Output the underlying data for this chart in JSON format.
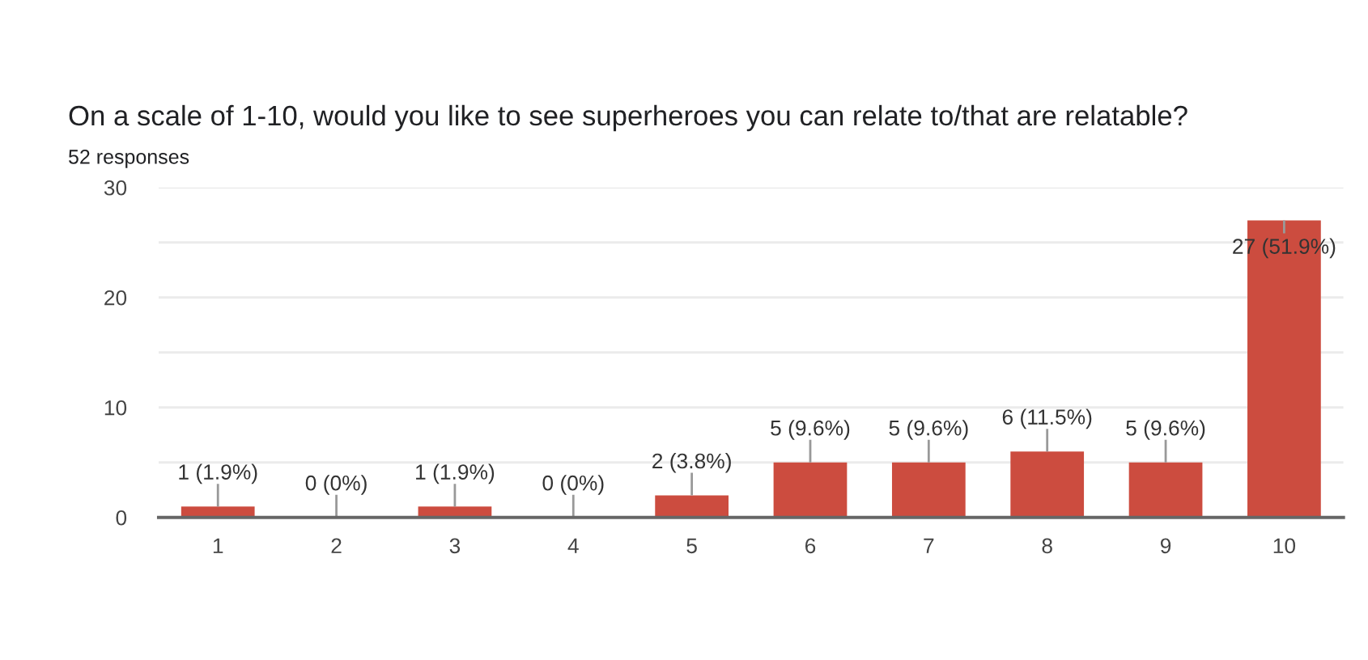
{
  "chart_data": {
    "type": "bar",
    "title": "On a scale of 1-10, would you like to see superheroes you can relate to/that are relatable?",
    "subtitle": "52 responses",
    "categories": [
      "1",
      "2",
      "3",
      "4",
      "5",
      "6",
      "7",
      "8",
      "9",
      "10"
    ],
    "values": [
      1,
      0,
      1,
      0,
      2,
      5,
      5,
      6,
      5,
      27
    ],
    "value_labels": [
      "1 (1.9%)",
      "0 (0%)",
      "1 (1.9%)",
      "0 (0%)",
      "2 (3.8%)",
      "5 (9.6%)",
      "5 (9.6%)",
      "6 (11.5%)",
      "5 (9.6%)",
      "27 (51.9%)"
    ],
    "color": "#cc4c3f",
    "ylim": [
      0,
      30
    ],
    "yticks": [
      0,
      {
        "value": 5,
        "label": null
      },
      10,
      {
        "value": 15,
        "label": null
      },
      20,
      {
        "value": 25,
        "label": null
      },
      30
    ],
    "grid": "y",
    "legend": false
  }
}
